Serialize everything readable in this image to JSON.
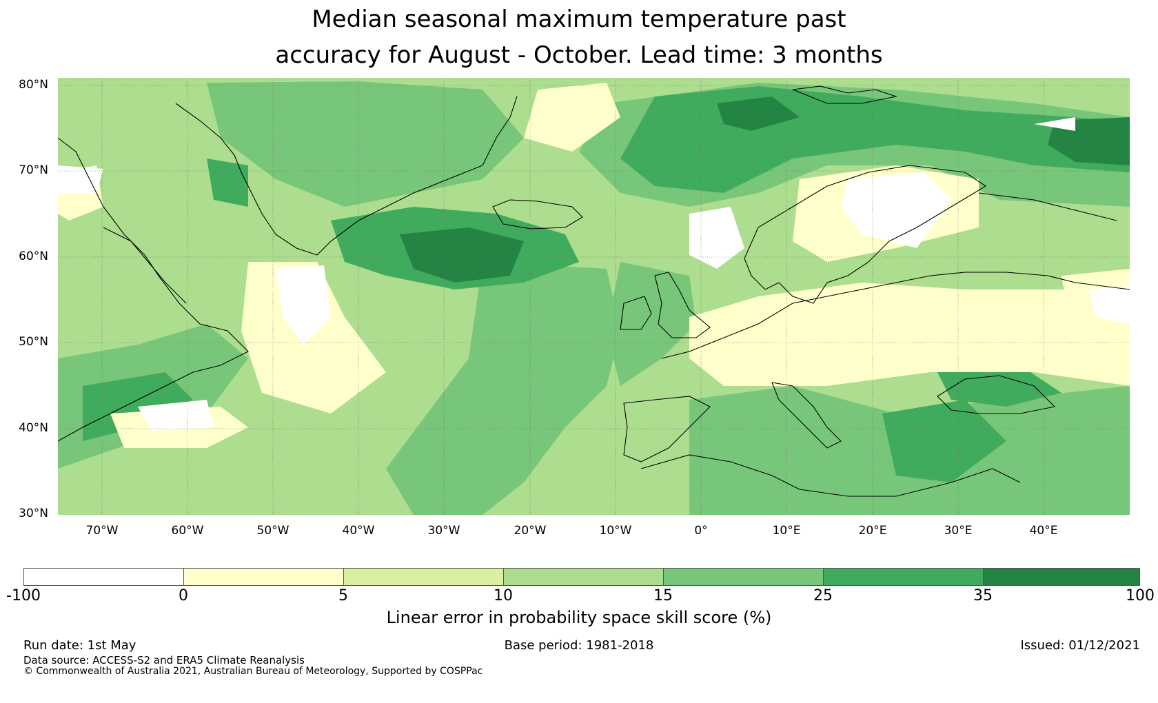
{
  "title_line1": "Median seasonal maximum temperature past",
  "title_line2": "accuracy for August - October. Lead time: 3 months",
  "lat_labels": [
    "80°N",
    "70°N",
    "60°N",
    "50°N",
    "40°N",
    "30°N"
  ],
  "lon_labels": [
    "70°W",
    "60°W",
    "50°W",
    "40°W",
    "30°W",
    "20°W",
    "10°W",
    "0°",
    "10°E",
    "20°E",
    "30°E",
    "40°E"
  ],
  "colorbar": {
    "title": "Linear error in probability space skill score (%)",
    "ticks": [
      "-100",
      "0",
      "5",
      "10",
      "15",
      "25",
      "35",
      "100"
    ],
    "colors": [
      "#ffffff",
      "#ffffcc",
      "#d9f0a3",
      "#addd8e",
      "#78c679",
      "#41ab5d",
      "#238443"
    ]
  },
  "footer": {
    "run_date": "Run date: 1st May",
    "base_period": "Base period: 1981-2018",
    "issued": "Issued: 01/12/2021",
    "data_source": "Data source: ACCESS-S2 and ERA5 Climate Reanalysis",
    "copyright": "© Commonwealth of Australia 2021, Australian Bureau of Meteorology, Supported by COSPPac"
  }
}
